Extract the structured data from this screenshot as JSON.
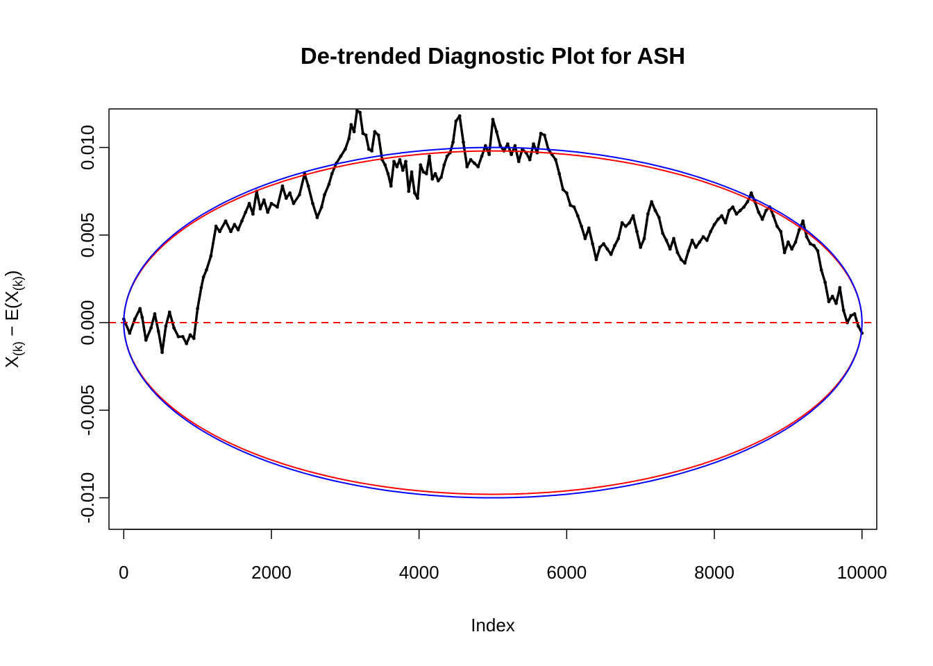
{
  "chart_data": {
    "type": "line",
    "title": "De-trended Diagnostic Plot for ASH",
    "xlabel": "Index",
    "ylabel": {
      "base1": "X",
      "sub1": "(k)",
      "mid": " − E(X",
      "sub2": "(k)",
      "end": ")"
    },
    "xlim": [
      -200,
      10200
    ],
    "ylim": [
      -0.0118,
      0.0122
    ],
    "xticks": [
      0,
      2000,
      4000,
      6000,
      8000,
      10000
    ],
    "xtick_labels": [
      "0",
      "2000",
      "4000",
      "6000",
      "8000",
      "10000"
    ],
    "yticks": [
      -0.01,
      -0.005,
      0.0,
      0.005,
      0.01
    ],
    "ytick_labels": [
      "-0.010",
      "-0.005",
      "0.000",
      "0.005",
      "0.010"
    ],
    "grid": false,
    "legend": "none",
    "series": [
      {
        "kind": "points",
        "color": "#000000",
        "x": [
          0,
          80,
          150,
          220,
          250,
          300,
          370,
          420,
          470,
          520,
          570,
          620,
          680,
          740,
          800,
          850,
          900,
          950,
          1000,
          1050,
          1080,
          1120,
          1180,
          1250,
          1300,
          1380,
          1450,
          1500,
          1550,
          1600,
          1650,
          1700,
          1750,
          1800,
          1850,
          1900,
          1950,
          2000,
          2080,
          2150,
          2200,
          2250,
          2300,
          2380,
          2450,
          2500,
          2560,
          2620,
          2680,
          2720,
          2780,
          2820,
          2880,
          2940,
          3000,
          3050,
          3080,
          3120,
          3160,
          3200,
          3240,
          3280,
          3320,
          3360,
          3400,
          3450,
          3500,
          3540,
          3580,
          3620,
          3660,
          3700,
          3740,
          3780,
          3820,
          3860,
          3900,
          3940,
          3980,
          4020,
          4060,
          4100,
          4140,
          4180,
          4220,
          4260,
          4300,
          4340,
          4380,
          4420,
          4460,
          4500,
          4550,
          4600,
          4650,
          4700,
          4750,
          4800,
          4850,
          4900,
          4950,
          5000,
          5050,
          5100,
          5150,
          5200,
          5250,
          5300,
          5350,
          5400,
          5450,
          5500,
          5550,
          5600,
          5650,
          5700,
          5750,
          5800,
          5850,
          5900,
          5950,
          6000,
          6050,
          6100,
          6150,
          6200,
          6250,
          6300,
          6350,
          6400,
          6450,
          6500,
          6550,
          6600,
          6650,
          6700,
          6750,
          6800,
          6850,
          6900,
          6950,
          7000,
          7050,
          7100,
          7150,
          7200,
          7250,
          7300,
          7350,
          7400,
          7450,
          7500,
          7550,
          7600,
          7650,
          7700,
          7750,
          7800,
          7850,
          7900,
          7950,
          8000,
          8050,
          8100,
          8150,
          8200,
          8250,
          8300,
          8350,
          8400,
          8450,
          8500,
          8550,
          8600,
          8650,
          8700,
          8750,
          8800,
          8850,
          8900,
          8950,
          9000,
          9050,
          9100,
          9150,
          9200,
          9250,
          9300,
          9350,
          9400,
          9450,
          9500,
          9550,
          9600,
          9650,
          9700,
          9750,
          9800,
          9850,
          9900,
          9950,
          10000
        ],
        "y": [
          0.0002,
          -0.0006,
          0.0002,
          0.0008,
          0.0003,
          -0.001,
          -0.0003,
          0.0005,
          -0.0005,
          -0.0017,
          -0.0002,
          0.0006,
          -0.0003,
          -0.0008,
          -0.0008,
          -0.0012,
          -0.0007,
          -0.0009,
          0.0008,
          0.002,
          0.0026,
          0.003,
          0.0038,
          0.0055,
          0.0052,
          0.0058,
          0.0052,
          0.0056,
          0.0053,
          0.0058,
          0.0063,
          0.0068,
          0.0062,
          0.0075,
          0.0065,
          0.007,
          0.0063,
          0.0068,
          0.0066,
          0.0078,
          0.0071,
          0.0074,
          0.0068,
          0.0073,
          0.0085,
          0.0078,
          0.0068,
          0.006,
          0.0066,
          0.0073,
          0.0079,
          0.0085,
          0.0091,
          0.0095,
          0.0099,
          0.0105,
          0.0113,
          0.0109,
          0.0121,
          0.012,
          0.0108,
          0.0107,
          0.0099,
          0.0098,
          0.0109,
          0.0107,
          0.0093,
          0.009,
          0.0085,
          0.0078,
          0.0092,
          0.0089,
          0.0093,
          0.0087,
          0.0092,
          0.0075,
          0.0086,
          0.0074,
          0.0071,
          0.009,
          0.0086,
          0.0085,
          0.0095,
          0.0082,
          0.0085,
          0.0081,
          0.0083,
          0.009,
          0.0095,
          0.0097,
          0.0103,
          0.0115,
          0.0118,
          0.0103,
          0.0089,
          0.0093,
          0.0091,
          0.0089,
          0.0095,
          0.0101,
          0.0096,
          0.0116,
          0.0109,
          0.0101,
          0.0098,
          0.0102,
          0.0096,
          0.0101,
          0.0092,
          0.0099,
          0.0097,
          0.0093,
          0.0102,
          0.0097,
          0.0108,
          0.0107,
          0.0099,
          0.0096,
          0.0093,
          0.0085,
          0.0076,
          0.0074,
          0.0067,
          0.0066,
          0.0061,
          0.0055,
          0.0048,
          0.0054,
          0.0045,
          0.0036,
          0.0043,
          0.0045,
          0.0042,
          0.0039,
          0.0044,
          0.0048,
          0.0057,
          0.0055,
          0.0057,
          0.0061,
          0.0052,
          0.0043,
          0.0048,
          0.0062,
          0.0069,
          0.0064,
          0.006,
          0.0051,
          0.0047,
          0.0042,
          0.0048,
          0.004,
          0.0036,
          0.0034,
          0.0041,
          0.0047,
          0.0043,
          0.0046,
          0.0049,
          0.0047,
          0.0052,
          0.0056,
          0.0059,
          0.0061,
          0.0057,
          0.0064,
          0.0066,
          0.0062,
          0.0064,
          0.0066,
          0.0069,
          0.0074,
          0.0069,
          0.0063,
          0.0059,
          0.0064,
          0.0066,
          0.0061,
          0.0055,
          0.0052,
          0.004,
          0.0046,
          0.0042,
          0.0046,
          0.0053,
          0.0058,
          0.0049,
          0.0045,
          0.0044,
          0.0041,
          0.003,
          0.0023,
          0.0012,
          0.0015,
          0.0011,
          0.002,
          0.0007,
          0.0,
          0.0004,
          0.0005,
          -0.0002,
          -0.0006
        ]
      },
      {
        "kind": "reference-line",
        "color": "#ff0000",
        "dashed": true,
        "y": 0
      },
      {
        "kind": "envelope",
        "color": "#ff0000",
        "amplitude": 0.0098,
        "xmin": 0,
        "xmax": 10000
      },
      {
        "kind": "envelope",
        "color": "#0000ff",
        "amplitude": 0.01,
        "xmin": 0,
        "xmax": 10000
      }
    ]
  }
}
